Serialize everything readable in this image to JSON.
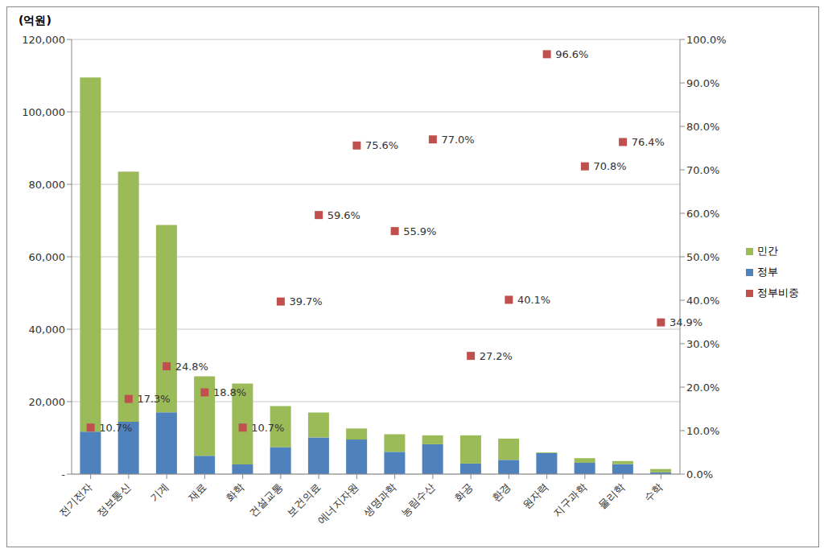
{
  "chart_data": {
    "type": "bar",
    "stacked": true,
    "y_label": "(억원)",
    "categories": [
      "전기전자",
      "정보통신",
      "기계",
      "재료",
      "화학",
      "건설교통",
      "보건의료",
      "에너지자원",
      "생명과학",
      "농림수산",
      "화공",
      "환경",
      "원자력",
      "지구과학",
      "물리학",
      "수학"
    ],
    "series": [
      {
        "name": "민간",
        "color": "#9bbb59",
        "values": [
          97800,
          69050,
          51740,
          21920,
          22320,
          11340,
          6870,
          3070,
          4850,
          2460,
          7790,
          5870,
          200,
          1280,
          850,
          910
        ]
      },
      {
        "name": "정부",
        "color": "#4f81bd",
        "values": [
          11700,
          14450,
          17060,
          5080,
          2680,
          7460,
          10130,
          9530,
          6150,
          8240,
          2910,
          3930,
          5800,
          3120,
          2750,
          490
        ]
      },
      {
        "name": "정부비중",
        "type": "scatter",
        "axis": "y2",
        "color": "#c0504d",
        "marker": "square",
        "data_labels": true,
        "values": [
          10.7,
          17.3,
          24.8,
          18.8,
          10.7,
          39.7,
          59.6,
          75.6,
          55.9,
          77.0,
          27.2,
          40.1,
          96.6,
          70.8,
          76.4,
          34.9
        ],
        "value_labels": [
          "10.7%",
          "17.3%",
          "24.8%",
          "18.8%",
          "10.7%",
          "39.7%",
          "59.6%",
          "75.6%",
          "55.9%",
          "77.0%",
          "27.2%",
          "40.1%",
          "96.6%",
          "70.8%",
          "76.4%",
          "34.9%"
        ]
      }
    ],
    "ylim": [
      0,
      120000
    ],
    "yticks": [
      {
        "value": 0,
        "label": "-"
      },
      {
        "value": 20000,
        "label": "20,000"
      },
      {
        "value": 40000,
        "label": "40,000"
      },
      {
        "value": 60000,
        "label": "60,000"
      },
      {
        "value": 80000,
        "label": "80,000"
      },
      {
        "value": 100000,
        "label": "100,000"
      },
      {
        "value": 120000,
        "label": "120,000"
      }
    ],
    "y2lim": [
      0,
      100
    ],
    "y2ticks": [
      {
        "value": 0,
        "label": "0.0%"
      },
      {
        "value": 10,
        "label": "10.0%"
      },
      {
        "value": 20,
        "label": "20.0%"
      },
      {
        "value": 30,
        "label": "30.0%"
      },
      {
        "value": 40,
        "label": "40.0%"
      },
      {
        "value": 50,
        "label": "50.0%"
      },
      {
        "value": 60,
        "label": "60.0%"
      },
      {
        "value": 70,
        "label": "70.0%"
      },
      {
        "value": 80,
        "label": "80.0%"
      },
      {
        "value": 90,
        "label": "90.0%"
      },
      {
        "value": 100,
        "label": "100.0%"
      }
    ],
    "grid": true,
    "legend": "right"
  }
}
